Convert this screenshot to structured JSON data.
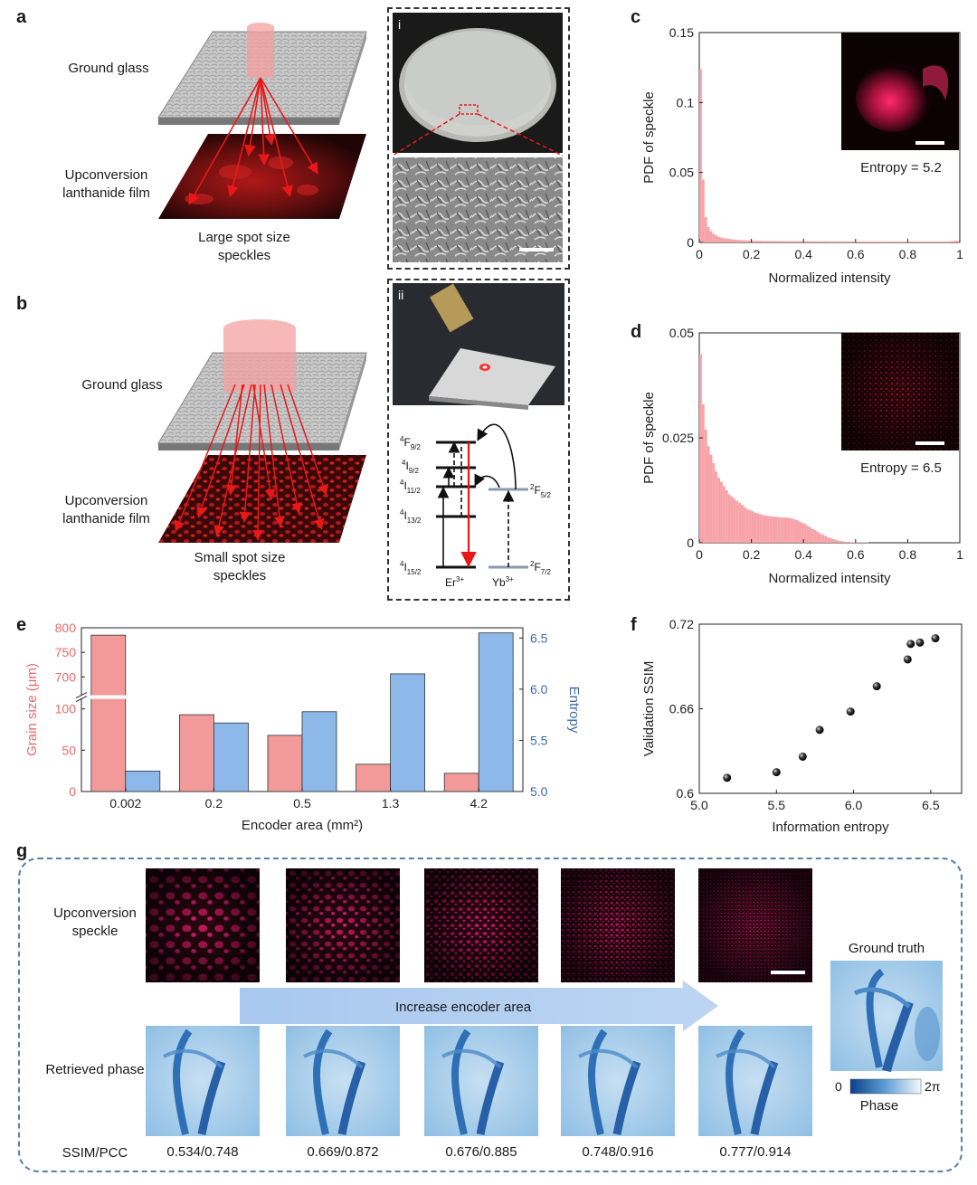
{
  "panel_labels": {
    "a": "a",
    "b": "b",
    "c": "c",
    "d": "d",
    "e": "e",
    "f": "f",
    "g": "g"
  },
  "panel_a": {
    "ground_glass_label": "Ground glass",
    "film_label": "Upconversion lanthanide film",
    "caption": "Large spot size speckles",
    "inset_label": "i"
  },
  "panel_b": {
    "ground_glass_label": "Ground glass",
    "film_label": "Upconversion lanthanide film",
    "caption": "Small spot size speckles",
    "inset_label": "ii",
    "energy_levels": {
      "er_levels": [
        "4F9/2",
        "4I9/2",
        "4I11/2",
        "4I13/2",
        "4I15/2"
      ],
      "yb_levels": [
        "2F5/2",
        "2F7/2"
      ],
      "er_ion": "Er3+",
      "yb_ion": "Yb3+"
    }
  },
  "colors": {
    "grain_red": "#f29a9a",
    "entropy_blue": "#8db8ea",
    "hist_pink": "#f7a3a8",
    "axis_red_text": "#e86a6a",
    "axis_blue_text": "#3d6aaa",
    "laser_red": "#e81818"
  },
  "chart_data": [
    {
      "id": "c",
      "type": "bar",
      "xlabel": "Normalized intensity",
      "ylabel": "PDF of speckle",
      "xlim": [
        0,
        1
      ],
      "ylim": [
        0,
        0.15
      ],
      "xticks": [
        "0",
        "0.2",
        "0.4",
        "0.6",
        "0.8",
        "1"
      ],
      "yticks": [
        "0",
        "0.05",
        "0.1",
        "0.15"
      ],
      "inset_text": "Entropy = 5.2",
      "bin_width": 0.01,
      "values": [
        0.124,
        0.045,
        0.018,
        0.011,
        0.008,
        0.006,
        0.005,
        0.004,
        0.0035,
        0.003,
        0.0028,
        0.0025,
        0.0022,
        0.002,
        0.0018,
        0.0017,
        0.0016,
        0.0015,
        0.0014,
        0.0013,
        0.0012,
        0.0012,
        0.0011,
        0.0011,
        0.001,
        0.001,
        0.001,
        0.001,
        0.001,
        0.001,
        0.0009,
        0.0009,
        0.0009,
        0.0009,
        0.0009,
        0.0009,
        0.0009,
        0.0009,
        0.0009,
        0.0009,
        0.0008,
        0.0008,
        0.0008,
        0.0008,
        0.0008,
        0.0008,
        0.0008,
        0.0008,
        0.0008,
        0.0008,
        0.0007,
        0.0007,
        0.0007,
        0.0007,
        0.0007,
        0.0007,
        0.0007,
        0.0007,
        0.0007,
        0.0007,
        0.0006,
        0.0006,
        0.0006,
        0.0006,
        0.0006,
        0.0006,
        0.0006,
        0.0006,
        0.0006,
        0.0006,
        0.0006,
        0.0006,
        0.0006,
        0.0006,
        0.0006,
        0.0006,
        0.0006,
        0.0006,
        0.0006,
        0.0006,
        0.0006,
        0.0006,
        0.0006,
        0.0006,
        0.0006,
        0.0006,
        0.0006,
        0.0006,
        0.0006,
        0.0006,
        0.0006,
        0.0006,
        0.0006,
        0.0006,
        0.0006,
        0.0006,
        0.0008,
        0.001,
        0.0012,
        0.0012
      ]
    },
    {
      "id": "d",
      "type": "bar",
      "xlabel": "Normalized intensity",
      "ylabel": "PDF of speckle",
      "xlim": [
        0,
        1
      ],
      "ylim": [
        0,
        0.05
      ],
      "xticks": [
        "0",
        "0.2",
        "0.4",
        "0.6",
        "0.8",
        "1"
      ],
      "yticks": [
        "0",
        "0.025",
        "0.05"
      ],
      "inset_text": "Entropy = 6.5",
      "bin_width": 0.01,
      "values": [
        0.045,
        0.033,
        0.027,
        0.023,
        0.021,
        0.019,
        0.017,
        0.0155,
        0.0145,
        0.0135,
        0.0125,
        0.0115,
        0.011,
        0.0105,
        0.01,
        0.0095,
        0.009,
        0.0085,
        0.008,
        0.0078,
        0.0075,
        0.0072,
        0.007,
        0.0068,
        0.0066,
        0.0065,
        0.0064,
        0.0063,
        0.0062,
        0.0062,
        0.0061,
        0.006,
        0.006,
        0.006,
        0.0059,
        0.0058,
        0.0056,
        0.0054,
        0.0051,
        0.0048,
        0.0045,
        0.0041,
        0.0037,
        0.0033,
        0.003,
        0.0026,
        0.0022,
        0.0019,
        0.0016,
        0.0013,
        0.0011,
        0.0009,
        0.0007,
        0.0005,
        0.0004,
        0.0003,
        0.0002,
        0.0002,
        0.0001,
        0.0001,
        0.0001,
        0.0001,
        0.0001,
        0.0001,
        0.0001,
        0,
        0,
        0,
        0,
        0,
        0,
        0,
        0,
        0,
        0,
        0,
        0,
        0,
        0,
        0,
        0,
        0,
        0,
        0,
        0,
        0,
        0,
        0,
        0,
        0,
        0,
        0,
        0,
        0,
        0,
        0,
        0,
        0,
        0,
        0
      ]
    },
    {
      "id": "e",
      "type": "bar",
      "xlabel": "Encoder area (mm²)",
      "categories": [
        "0.002",
        "0.2",
        "0.5",
        "1.3",
        "4.2"
      ],
      "series": [
        {
          "name": "Grain size (μm)",
          "axis": "left",
          "values": [
            785,
            93,
            68,
            33,
            22
          ]
        },
        {
          "name": "Entropy",
          "axis": "right",
          "values": [
            5.2,
            5.67,
            5.78,
            6.15,
            6.55
          ]
        }
      ],
      "left_axis": {
        "label": "Grain size (μm)",
        "lower_range": [
          0,
          115
        ],
        "upper_range": [
          680,
          800
        ],
        "lower_ticks": [
          "0",
          "50",
          "100"
        ],
        "upper_ticks": [
          "700",
          "750",
          "800"
        ]
      },
      "right_axis": {
        "label": "Entropy",
        "ylim": [
          5.0,
          6.6
        ],
        "ticks": [
          "5.0",
          "5.5",
          "6.0",
          "6.5"
        ]
      }
    },
    {
      "id": "f",
      "type": "scatter",
      "xlabel": "Information entropy",
      "ylabel": "Validation SSIM",
      "xlim": [
        5.0,
        6.7
      ],
      "ylim": [
        0.6,
        0.72
      ],
      "xticks": [
        "5.0",
        "5.5",
        "6.0",
        "6.5"
      ],
      "yticks": [
        "0.6",
        "0.66",
        "0.72"
      ],
      "points": [
        [
          5.18,
          0.611
        ],
        [
          5.5,
          0.615
        ],
        [
          5.67,
          0.626
        ],
        [
          5.78,
          0.645
        ],
        [
          5.98,
          0.658
        ],
        [
          6.15,
          0.676
        ],
        [
          6.35,
          0.695
        ],
        [
          6.37,
          0.706
        ],
        [
          6.43,
          0.707
        ],
        [
          6.53,
          0.71
        ]
      ]
    }
  ],
  "panel_g": {
    "row1_label": "Upconversion speckle",
    "row2_label": "Retrieved phase",
    "metric_label": "SSIM/PCC",
    "arrow_text": "Increase encoder area",
    "metrics": [
      "0.534/0.748",
      "0.669/0.872",
      "0.676/0.885",
      "0.748/0.916",
      "0.777/0.914"
    ],
    "ground_truth_label": "Ground truth",
    "colorbar_min": "0",
    "colorbar_max": "2π",
    "colorbar_label": "Phase"
  }
}
